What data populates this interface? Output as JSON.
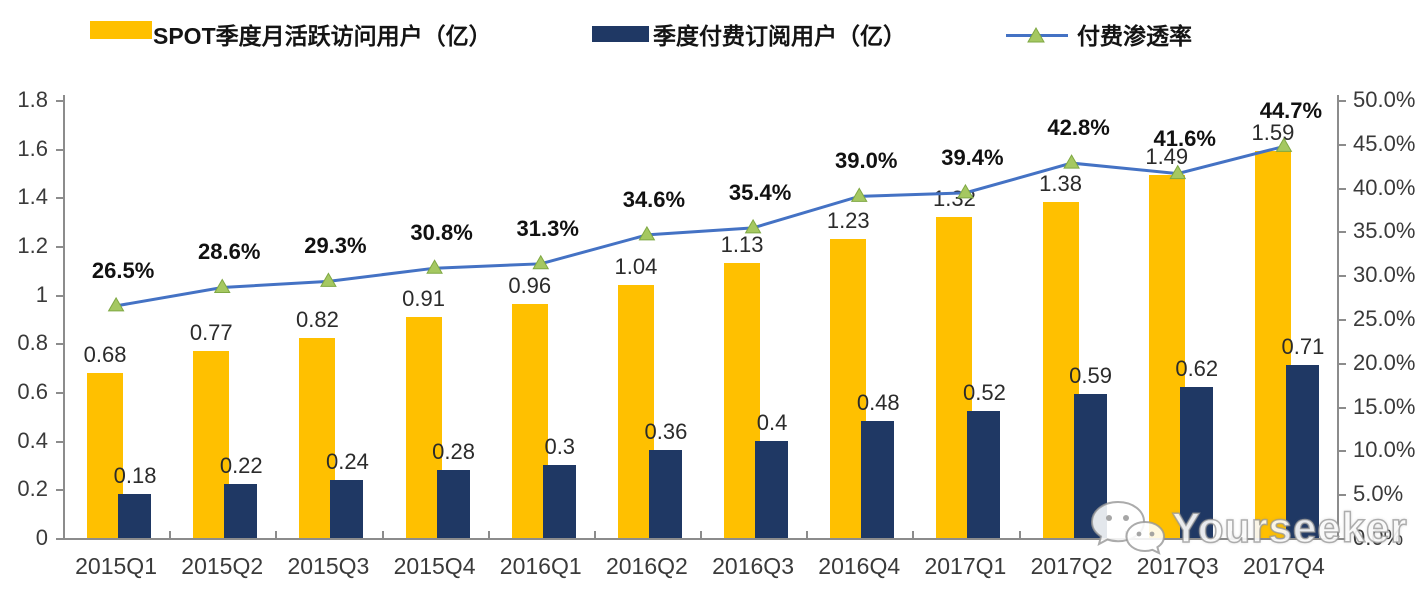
{
  "colors": {
    "mau_bar": "#FFC000",
    "subs_bar": "#1F3864",
    "penetration_line": "#4472C4",
    "marker_fill": "#A5C861",
    "marker_stroke": "#7FA843",
    "axis": "#8C8C8C",
    "tick_text": "#3A3A3A",
    "label_text": "#2B2B2B"
  },
  "legend": {
    "items": [
      {
        "label": "SPOT季度月活跃访问用户（亿）",
        "type": "bar",
        "color": "#FFC000"
      },
      {
        "label": "季度付费订阅用户（亿）",
        "type": "bar",
        "color": "#1F3864"
      },
      {
        "label": "付费渗透率",
        "type": "line",
        "color": "#4472C4"
      }
    ]
  },
  "chart_data": {
    "type": "bar+line combo",
    "title": "",
    "categories": [
      "2015Q1",
      "2015Q2",
      "2015Q3",
      "2015Q4",
      "2016Q1",
      "2016Q2",
      "2016Q3",
      "2016Q4",
      "2017Q1",
      "2017Q2",
      "2017Q3",
      "2017Q4"
    ],
    "series": [
      {
        "name": "SPOT季度月活跃访问用户（亿）",
        "type": "bar",
        "axis": "left",
        "color": "#FFC000",
        "values": [
          0.68,
          0.77,
          0.82,
          0.91,
          0.96,
          1.04,
          1.13,
          1.23,
          1.32,
          1.38,
          1.49,
          1.59
        ],
        "labels": [
          "0.68",
          "0.77",
          "0.82",
          "0.91",
          "0.96",
          "1.04",
          "1.13",
          "1.23",
          "1.32",
          "1.38",
          "1.49",
          "1.59"
        ]
      },
      {
        "name": "季度付费订阅用户（亿）",
        "type": "bar",
        "axis": "left",
        "color": "#1F3864",
        "values": [
          0.18,
          0.22,
          0.24,
          0.28,
          0.3,
          0.36,
          0.4,
          0.48,
          0.52,
          0.59,
          0.62,
          0.71
        ],
        "labels": [
          "0.18",
          "0.22",
          "0.24",
          "0.28",
          "0.3",
          "0.36",
          "0.4",
          "0.48",
          "0.52",
          "0.59",
          "0.62",
          "0.71"
        ]
      },
      {
        "name": "付费渗透率",
        "type": "line",
        "axis": "right",
        "color": "#4472C4",
        "marker": "triangle-up",
        "values": [
          26.5,
          28.6,
          29.3,
          30.8,
          31.3,
          34.6,
          35.4,
          39.0,
          39.4,
          42.8,
          41.6,
          44.7
        ],
        "labels": [
          "26.5%",
          "28.6%",
          "29.3%",
          "30.8%",
          "31.3%",
          "34.6%",
          "35.4%",
          "39.0%",
          "39.4%",
          "42.8%",
          "41.6%",
          "44.7%"
        ]
      }
    ],
    "left_axis": {
      "min": 0,
      "max": 1.8,
      "tick_values": [
        0,
        0.2,
        0.4,
        0.6,
        0.8,
        1,
        1.2,
        1.4,
        1.6,
        1.8
      ],
      "tick_labels": [
        "0",
        "0.2",
        "0.4",
        "0.6",
        "0.8",
        "1",
        "1.2",
        "1.4",
        "1.6",
        "1.8"
      ]
    },
    "right_axis": {
      "min": 0,
      "max": 50,
      "tick_values": [
        0,
        5,
        10,
        15,
        20,
        25,
        30,
        35,
        40,
        45,
        50
      ],
      "tick_labels": [
        "0.0%",
        "5.0%",
        "10.0%",
        "15.0%",
        "20.0%",
        "25.0%",
        "30.0%",
        "35.0%",
        "40.0%",
        "45.0%",
        "50.0%"
      ]
    },
    "grid": false,
    "legend_position": "top"
  },
  "watermark": {
    "text": "Yourseeker",
    "icon": "wechat-icon"
  }
}
